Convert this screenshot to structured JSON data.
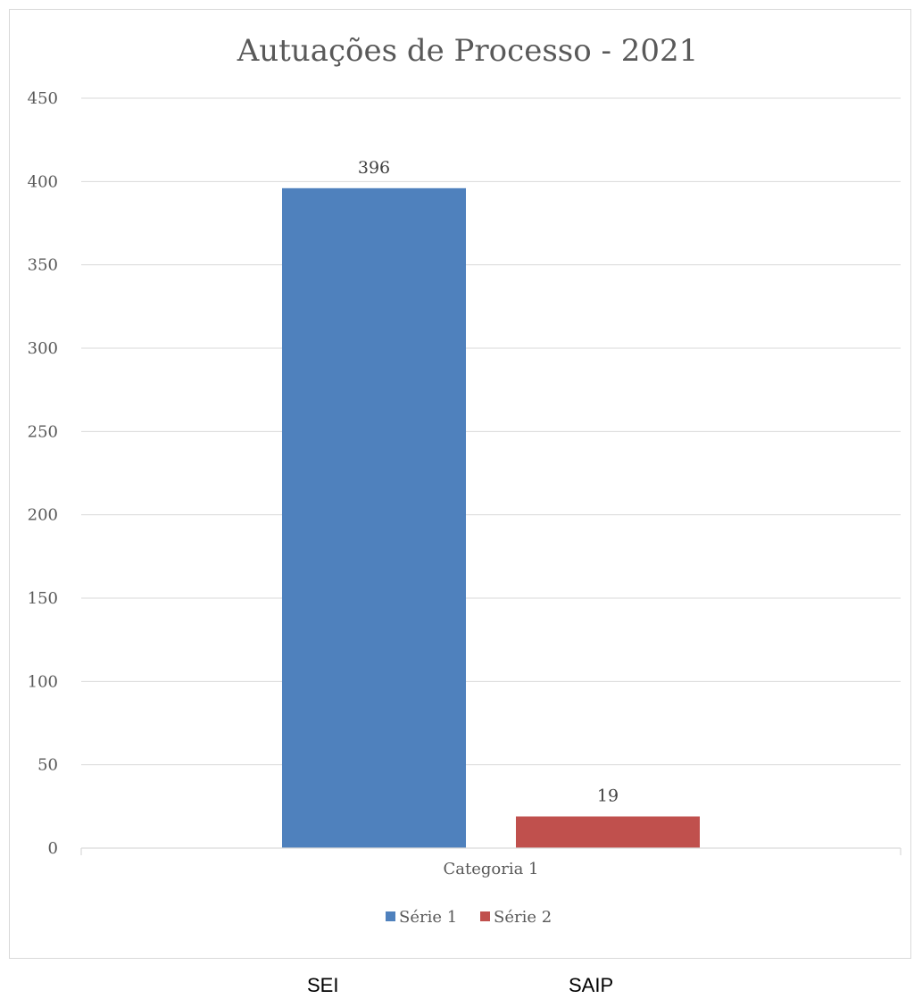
{
  "chart_data": {
    "type": "bar",
    "title": "Autuações de Processo - 2021",
    "categories": [
      "Categoria 1"
    ],
    "series": [
      {
        "name": "Série 1",
        "values": [
          396
        ],
        "color": "#4f81bd",
        "data_label": "396"
      },
      {
        "name": "Série 2",
        "values": [
          19
        ],
        "color": "#c0504d",
        "data_label": "19"
      }
    ],
    "xlabel": "",
    "ylabel": "",
    "ylim": [
      0,
      450
    ],
    "yticks": [
      0,
      50,
      100,
      150,
      200,
      250,
      300,
      350,
      400,
      450
    ],
    "grid": true,
    "legend": "bottom"
  },
  "below_labels": {
    "left": "SEI",
    "right": "SAIP"
  }
}
